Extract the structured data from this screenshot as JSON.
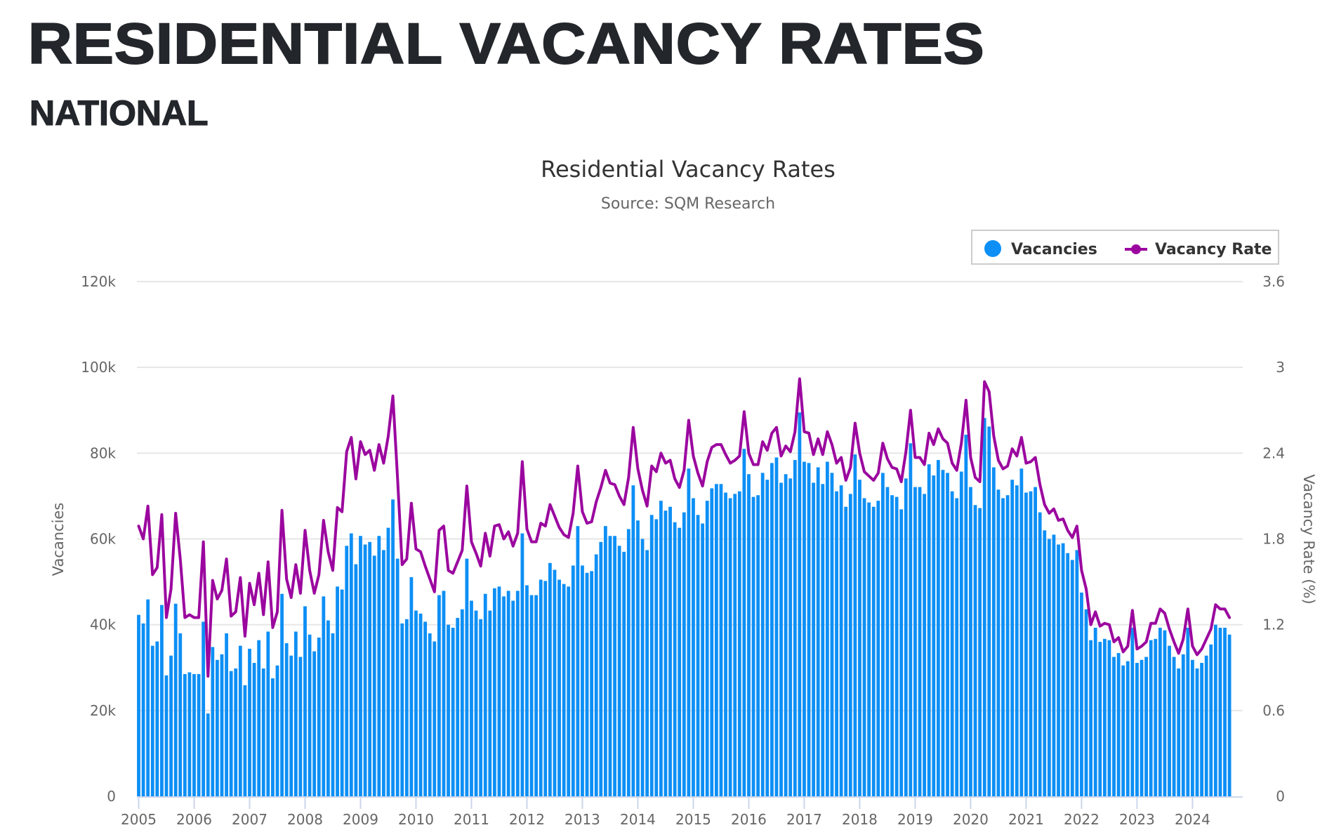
{
  "header": {
    "title": "RESIDENTIAL VACANCY RATES",
    "subtitle": "NATIONAL"
  },
  "colors": {
    "heading": "#23262b",
    "bars": "#0d8ff5",
    "line": "#9b069f",
    "grid": "#e6e6e6",
    "axis": "#ccd6eb"
  },
  "chart_data": {
    "type": "bar+line",
    "title": "Residential Vacancy Rates",
    "subtitle": "Source: SQM Research",
    "xlabel": "",
    "x_start": "2005-01",
    "x_frequency": "monthly",
    "x_ticks": [
      "2005",
      "2006",
      "2007",
      "2008",
      "2009",
      "2010",
      "2011",
      "2012",
      "2013",
      "2014",
      "2015",
      "2016",
      "2017",
      "2018",
      "2019",
      "2020",
      "2021",
      "2022",
      "2023",
      "2024"
    ],
    "y_left": {
      "label": "Vacancies",
      "range": [
        0,
        120000
      ],
      "ticks": [
        "0",
        "20k",
        "40k",
        "60k",
        "80k",
        "100k",
        "120k"
      ],
      "tick_values": [
        0,
        20000,
        40000,
        60000,
        80000,
        100000,
        120000
      ]
    },
    "y_right": {
      "label": "Vacancy Rate (%)",
      "range": [
        0,
        3.6
      ],
      "ticks": [
        "0",
        "0.6",
        "1.2",
        "1.8",
        "2.4",
        "3",
        "3.6"
      ],
      "tick_values": [
        0,
        0.6,
        1.2,
        1.8,
        2.4,
        3,
        3.6
      ]
    },
    "grid": true,
    "legend": {
      "position": "top-right",
      "items": [
        "Vacancies",
        "Vacancy Rate"
      ]
    },
    "series": [
      {
        "name": "Vacancies",
        "type": "bar",
        "axis": "left",
        "unit": "thousands",
        "values": [
          42.3,
          40.3,
          45.9,
          35.1,
          36.1,
          44.6,
          28.2,
          32.8,
          44.9,
          38.0,
          28.5,
          28.9,
          28.5,
          28.5,
          40.7,
          19.3,
          34.8,
          31.8,
          33.1,
          38.0,
          29.2,
          29.8,
          35.1,
          25.9,
          34.4,
          31.1,
          36.4,
          29.8,
          38.4,
          27.5,
          30.5,
          47.2,
          35.7,
          32.8,
          38.4,
          32.5,
          44.3,
          37.7,
          33.8,
          37.0,
          46.6,
          41.0,
          38.0,
          48.9,
          48.2,
          58.4,
          61.3,
          54.1,
          60.7,
          58.7,
          59.3,
          56.1,
          60.7,
          57.4,
          62.6,
          69.2,
          55.4,
          40.3,
          41.3,
          51.1,
          43.3,
          42.6,
          40.7,
          38.0,
          36.1,
          46.9,
          47.9,
          40.0,
          39.3,
          41.6,
          43.6,
          55.4,
          45.6,
          43.3,
          41.3,
          47.2,
          43.3,
          48.5,
          48.9,
          46.6,
          47.9,
          45.6,
          47.9,
          61.3,
          49.2,
          46.9,
          46.9,
          50.5,
          50.2,
          54.4,
          52.8,
          50.5,
          49.5,
          48.9,
          53.8,
          63.0,
          53.8,
          52.1,
          52.5,
          56.4,
          59.3,
          63.0,
          60.7,
          60.7,
          58.4,
          57.0,
          62.3,
          72.5,
          64.3,
          60.0,
          57.4,
          65.6,
          64.6,
          68.9,
          66.6,
          67.5,
          63.9,
          62.6,
          66.2,
          76.4,
          69.5,
          65.6,
          63.6,
          68.9,
          71.8,
          72.8,
          72.8,
          70.8,
          69.5,
          70.5,
          71.1,
          81.0,
          75.1,
          69.8,
          70.2,
          75.4,
          73.8,
          77.7,
          79.0,
          73.1,
          75.1,
          74.1,
          78.4,
          89.5,
          78.0,
          77.7,
          73.1,
          76.7,
          72.8,
          78.0,
          75.4,
          71.1,
          72.5,
          67.5,
          70.5,
          79.7,
          73.8,
          69.5,
          68.5,
          67.5,
          68.9,
          75.4,
          72.1,
          70.2,
          69.8,
          66.9,
          74.1,
          82.3,
          72.1,
          72.1,
          70.5,
          77.4,
          74.8,
          78.4,
          76.1,
          75.4,
          71.1,
          69.5,
          75.7,
          84.3,
          72.1,
          67.9,
          67.2,
          88.2,
          86.2,
          76.7,
          71.5,
          69.5,
          70.2,
          73.8,
          72.5,
          76.4,
          70.8,
          71.1,
          72.1,
          66.2,
          62.0,
          60.0,
          61.0,
          58.7,
          59.0,
          56.7,
          55.1,
          57.4,
          47.5,
          43.6,
          36.4,
          39.3,
          36.0,
          36.7,
          36.4,
          32.5,
          33.4,
          30.5,
          31.5,
          39.3,
          31.1,
          31.8,
          32.5,
          36.4,
          36.7,
          39.3,
          38.7,
          35.1,
          32.5,
          29.8,
          33.1,
          39.3,
          31.8,
          29.8,
          31.1,
          32.8,
          35.4,
          40.0,
          39.3,
          39.3,
          37.7
        ]
      },
      {
        "name": "Vacancy Rate",
        "type": "line",
        "axis": "right",
        "unit": "percent",
        "values": [
          1.89,
          1.8,
          2.03,
          1.55,
          1.6,
          1.97,
          1.25,
          1.45,
          1.98,
          1.66,
          1.25,
          1.27,
          1.25,
          1.25,
          1.78,
          0.84,
          1.51,
          1.38,
          1.44,
          1.66,
          1.26,
          1.29,
          1.53,
          1.12,
          1.49,
          1.34,
          1.56,
          1.27,
          1.64,
          1.18,
          1.29,
          2.0,
          1.52,
          1.39,
          1.62,
          1.42,
          1.86,
          1.58,
          1.42,
          1.55,
          1.93,
          1.71,
          1.58,
          2.02,
          1.99,
          2.41,
          2.51,
          2.22,
          2.48,
          2.39,
          2.42,
          2.28,
          2.46,
          2.33,
          2.52,
          2.8,
          2.23,
          1.62,
          1.66,
          2.05,
          1.73,
          1.71,
          1.61,
          1.52,
          1.43,
          1.86,
          1.89,
          1.58,
          1.56,
          1.64,
          1.72,
          2.17,
          1.78,
          1.7,
          1.61,
          1.84,
          1.68,
          1.89,
          1.9,
          1.8,
          1.85,
          1.75,
          1.84,
          2.34,
          1.87,
          1.78,
          1.78,
          1.91,
          1.89,
          2.04,
          1.96,
          1.88,
          1.83,
          1.81,
          1.98,
          2.31,
          1.99,
          1.91,
          1.92,
          2.06,
          2.16,
          2.28,
          2.19,
          2.18,
          2.1,
          2.04,
          2.23,
          2.58,
          2.29,
          2.14,
          2.03,
          2.31,
          2.27,
          2.4,
          2.33,
          2.35,
          2.22,
          2.16,
          2.28,
          2.63,
          2.38,
          2.26,
          2.17,
          2.34,
          2.44,
          2.46,
          2.46,
          2.39,
          2.33,
          2.35,
          2.38,
          2.69,
          2.4,
          2.32,
          2.32,
          2.48,
          2.42,
          2.54,
          2.58,
          2.38,
          2.45,
          2.41,
          2.55,
          2.92,
          2.55,
          2.54,
          2.39,
          2.5,
          2.39,
          2.55,
          2.46,
          2.33,
          2.37,
          2.21,
          2.3,
          2.61,
          2.4,
          2.27,
          2.24,
          2.21,
          2.26,
          2.47,
          2.36,
          2.3,
          2.29,
          2.2,
          2.41,
          2.7,
          2.37,
          2.37,
          2.32,
          2.54,
          2.46,
          2.57,
          2.5,
          2.47,
          2.33,
          2.28,
          2.47,
          2.77,
          2.37,
          2.23,
          2.2,
          2.9,
          2.83,
          2.52,
          2.35,
          2.29,
          2.31,
          2.43,
          2.38,
          2.51,
          2.33,
          2.34,
          2.37,
          2.18,
          2.04,
          1.98,
          2.01,
          1.93,
          1.94,
          1.86,
          1.81,
          1.89,
          1.58,
          1.45,
          1.2,
          1.29,
          1.19,
          1.21,
          1.2,
          1.08,
          1.11,
          1.01,
          1.05,
          1.3,
          1.03,
          1.05,
          1.08,
          1.21,
          1.21,
          1.31,
          1.28,
          1.17,
          1.08,
          1.0,
          1.1,
          1.31,
          1.05,
          0.99,
          1.03,
          1.1,
          1.17,
          1.34,
          1.31,
          1.31,
          1.25
        ]
      }
    ]
  }
}
